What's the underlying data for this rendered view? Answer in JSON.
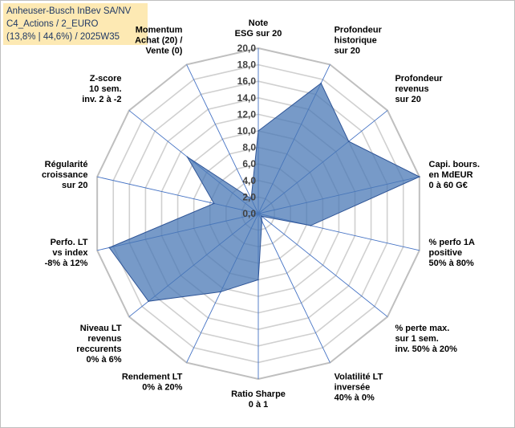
{
  "header": {
    "lines": [
      "Anheuser-Busch InBev SA/NV",
      "C4_Actions / 2_EURO",
      "(13,8% | 44,6%) / 2025W35"
    ]
  },
  "chart_data": {
    "type": "radar",
    "axes": [
      "Note\nESG sur 20",
      "Profondeur\nhistorique\nsur 20",
      "Profondeur\nrevenus\nsur 20",
      "Capi. bours.\nen MdEUR\n0 à 60 G€",
      "% perfo 1A\npositive\n50% à 80%",
      "% perte max.\nsur 1 sem.\ninv. 50% à 20%",
      "Volatilité LT\ninversée\n40% à 0%",
      "Ratio Sharpe\n0 à 1",
      "Rendement LT\n0% à 20%",
      "Niveau LT\nrevenus\nreccurents\n0% à 6%",
      "Perfo. LT\nvs index\n-8% à 12%",
      "Régularité\ncroissance\nsur 20",
      "Z-score\n10 sem.\ninv. 2 à -2",
      "Momentum\nAchat (20) /\nVente (0)"
    ],
    "series": [
      {
        "values": [
          10,
          17.5,
          14,
          20,
          6.5,
          0.5,
          1,
          8,
          10.5,
          17,
          18.5,
          5.5,
          11,
          2
        ]
      }
    ],
    "rlim": [
      0,
      20
    ],
    "tick_values": [
      0,
      2,
      4,
      6,
      8,
      10,
      12,
      14,
      16,
      18,
      20
    ],
    "tick_labels": [
      "0,0",
      "2,0",
      "4,0",
      "6,0",
      "8,0",
      "10,0",
      "12,0",
      "14,0",
      "16,0",
      "18,0",
      "20,0"
    ],
    "colors": {
      "fill": "#4a78b5",
      "fill_opacity": 0.75,
      "stroke": "#2f5597",
      "grid": "#d0d0d0",
      "spoke": "#4472c4"
    }
  }
}
